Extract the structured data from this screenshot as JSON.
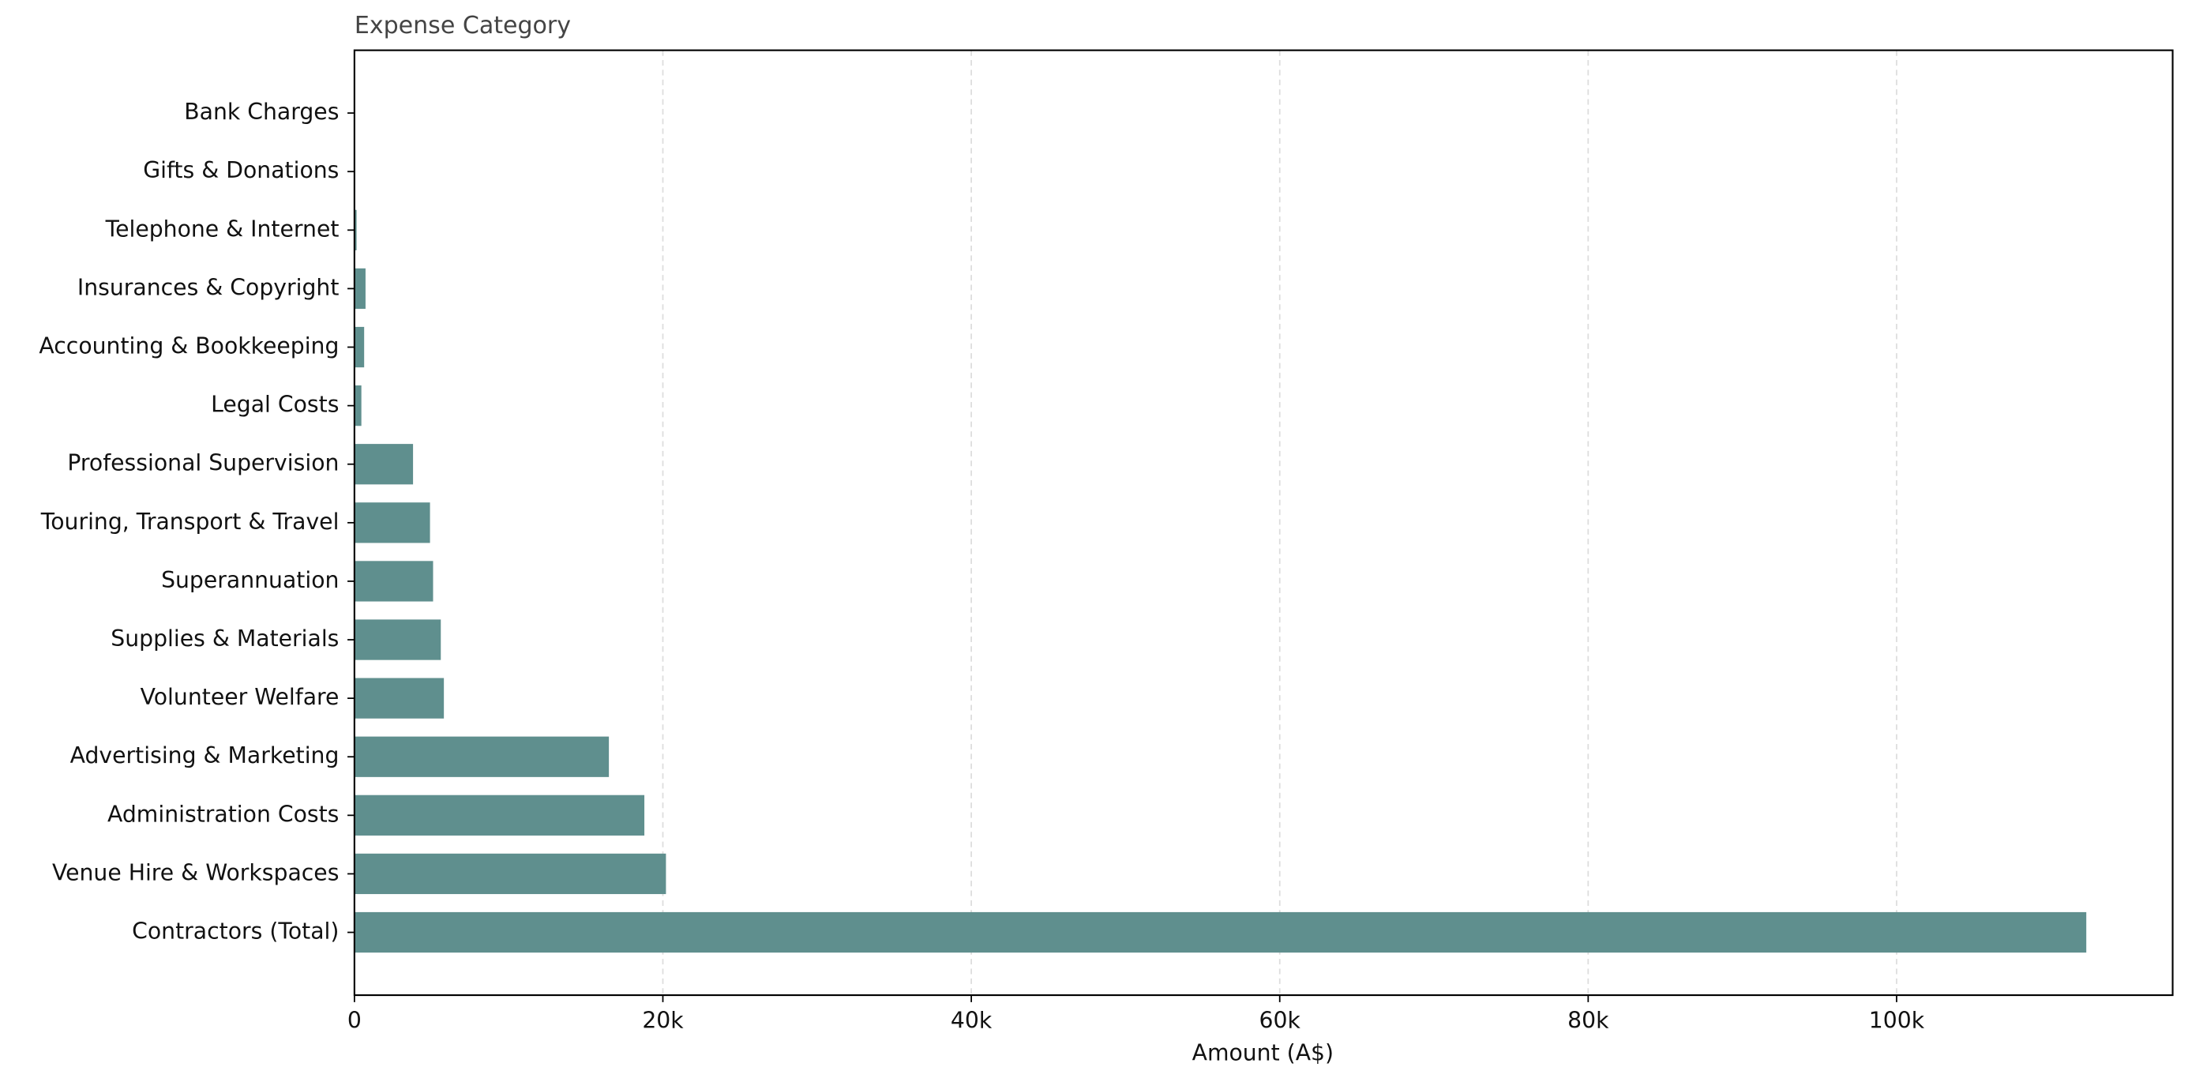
{
  "chart_data": {
    "type": "barh",
    "y_label": "Expense Category",
    "x_label": "Amount (A$)",
    "categories": [
      "Contractors (Total)",
      "Venue Hire & Workspaces",
      "Administration Costs",
      "Advertising & Marketing",
      "Volunteer Welfare",
      "Supplies & Materials",
      "Superannuation",
      "Touring, Transport & Travel",
      "Professional Supervision",
      "Legal Costs",
      "Accounting & Bookkeeping",
      "Insurances & Copyright",
      "Telephone & Internet",
      "Gifts & Donations",
      "Bank Charges"
    ],
    "values": [
      112300,
      20200,
      18800,
      16500,
      5800,
      5600,
      5100,
      4900,
      3800,
      450,
      630,
      720,
      140,
      50,
      30
    ],
    "color": "#5f8f8e",
    "xlim": [
      0,
      117900
    ],
    "xticks": [
      0,
      {
        "value": 20000,
        "label": "20k"
      },
      {
        "value": 40000,
        "label": "40k"
      },
      {
        "value": 60000,
        "label": "60k"
      },
      {
        "value": 80000,
        "label": "80k"
      },
      {
        "value": 100000,
        "label": "100k"
      }
    ],
    "grid": true
  }
}
